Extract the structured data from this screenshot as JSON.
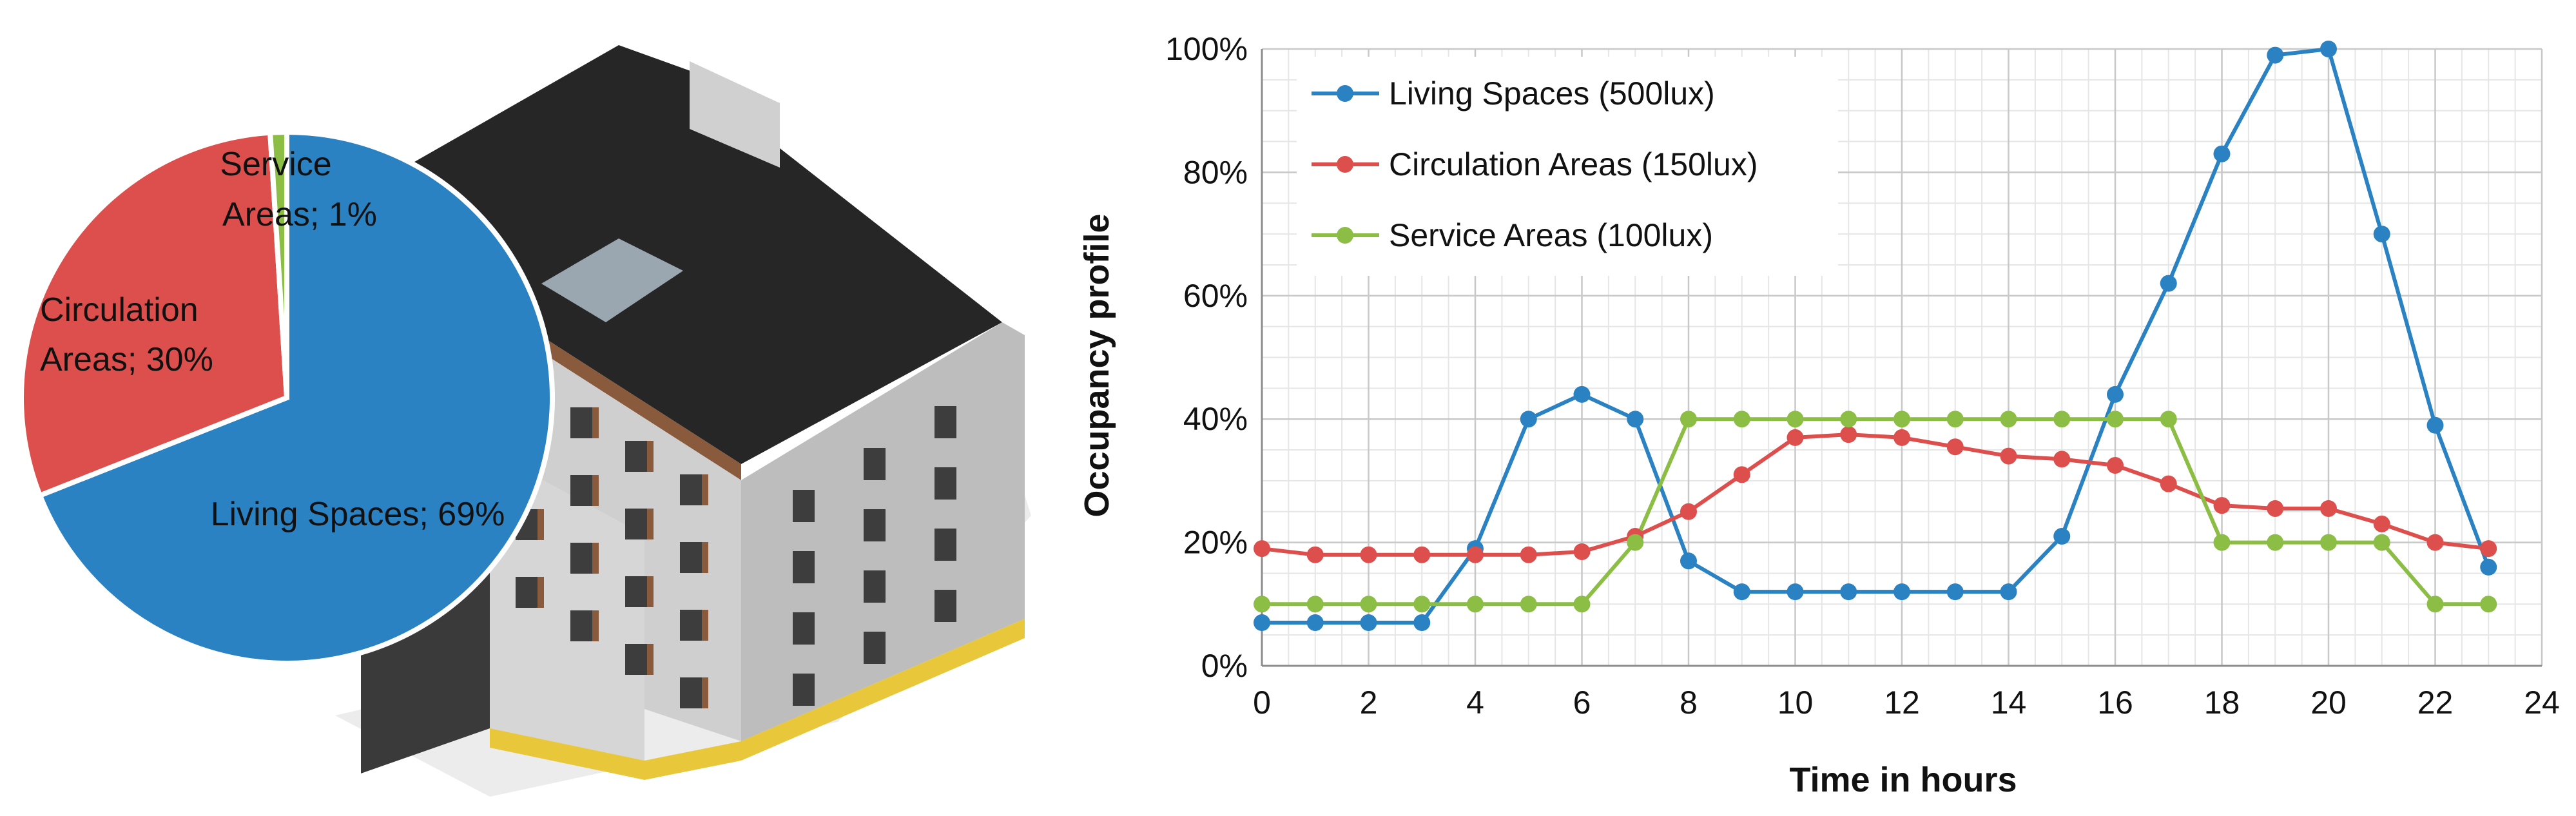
{
  "chart_data": [
    {
      "type": "pie",
      "title": "",
      "slices": [
        {
          "label": "Living Spaces; 69%",
          "category": "Living Spaces",
          "value": 69,
          "color": "#2a82c2"
        },
        {
          "label": "Circulation Areas; 30%",
          "category": "Circulation Areas",
          "value": 30,
          "color": "#dd4f4c"
        },
        {
          "label": "Service Areas; 1%",
          "category": "Service Areas",
          "value": 1,
          "color": "#8cbd45"
        }
      ]
    },
    {
      "type": "line",
      "title": "",
      "xlabel": "Time in hours",
      "ylabel": "Occupancy  profile",
      "xlim": [
        0,
        24
      ],
      "ylim": [
        0,
        100
      ],
      "x_ticks": [
        0,
        2,
        4,
        6,
        8,
        10,
        12,
        14,
        16,
        18,
        20,
        22,
        24
      ],
      "y_ticks": [
        0,
        20,
        40,
        60,
        80,
        100
      ],
      "y_tick_labels": [
        "0%",
        "20%",
        "40%",
        "60%",
        "80%",
        "100%"
      ],
      "grid": true,
      "legend_position": "top-left",
      "x": [
        0,
        1,
        2,
        3,
        4,
        5,
        6,
        7,
        8,
        9,
        10,
        11,
        12,
        13,
        14,
        15,
        16,
        17,
        18,
        19,
        20,
        21,
        22,
        23
      ],
      "series": [
        {
          "name": "Living Spaces (500lux)",
          "color": "#2a82c2",
          "values": [
            7,
            7,
            7,
            7,
            19,
            40,
            44,
            40,
            17,
            12,
            12,
            12,
            12,
            12,
            12,
            21,
            44,
            62,
            83,
            99,
            100,
            70,
            39,
            16
          ]
        },
        {
          "name": "Circulation Areas (150lux)",
          "color": "#dd4f4c",
          "values": [
            19,
            18,
            18,
            18,
            18,
            18,
            18.5,
            21,
            25,
            31,
            37,
            37.5,
            37,
            35.5,
            34,
            33.5,
            32.5,
            29.5,
            26,
            25.5,
            25.5,
            23,
            20,
            19
          ]
        },
        {
          "name": "Service Areas (100lux)",
          "color": "#8cbd45",
          "values": [
            10,
            10,
            10,
            10,
            10,
            10,
            10,
            20,
            40,
            40,
            40,
            40,
            40,
            40,
            40,
            40,
            40,
            40,
            20,
            20,
            20,
            20,
            10,
            10
          ]
        }
      ]
    }
  ],
  "illustration": {
    "name": "building-rendering"
  }
}
